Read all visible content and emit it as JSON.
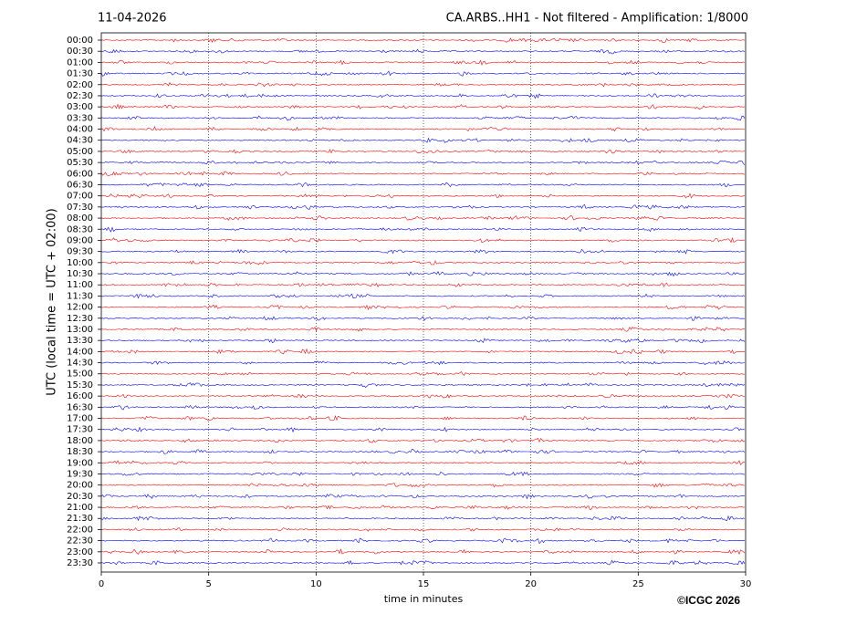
{
  "chart_data": {
    "type": "helicorder",
    "date": "11-04-2026",
    "title": "CA.ARBS..HH1 - Not filtered - Amplification: 1/8000",
    "ylabel": "UTC (local time = UTC + 02:00)",
    "xlabel": "time in minutes",
    "categories": [
      "00:00",
      "00:30",
      "01:00",
      "01:30",
      "02:00",
      "02:30",
      "03:00",
      "03:30",
      "04:00",
      "04:30",
      "05:00",
      "05:30",
      "06:00",
      "06:30",
      "07:00",
      "07:30",
      "08:00",
      "08:30",
      "09:00",
      "09:30",
      "10:00",
      "10:30",
      "11:00",
      "11:30",
      "12:00",
      "12:30",
      "13:00",
      "13:30",
      "14:00",
      "14:30",
      "15:00",
      "15:30",
      "16:00",
      "16:30",
      "17:00",
      "17:30",
      "18:00",
      "18:30",
      "19:00",
      "19:30",
      "20:00",
      "20:30",
      "21:00",
      "21:30",
      "22:00",
      "22:30",
      "23:00",
      "23:30"
    ],
    "colors": [
      "#ff0000",
      "#0000ff"
    ],
    "xlim": [
      0,
      30
    ],
    "xticks": [
      0,
      5,
      10,
      15,
      20,
      25,
      30
    ],
    "grid": true
  },
  "copyright": "©ICGC 2026"
}
